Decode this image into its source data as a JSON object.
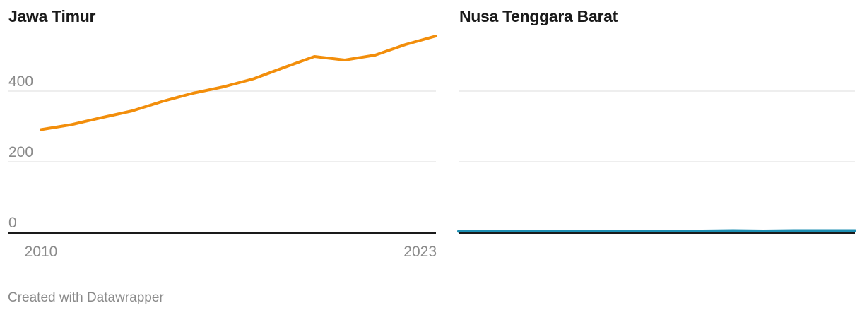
{
  "chart_data": [
    {
      "type": "line",
      "title": "Jawa Timur",
      "x": [
        2010,
        2011,
        2012,
        2013,
        2014,
        2015,
        2016,
        2017,
        2018,
        2019,
        2020,
        2021,
        2022,
        2023
      ],
      "series": [
        {
          "values": [
            291,
            305,
            325,
            344,
            371,
            394,
            412,
            435,
            467,
            498,
            488,
            502,
            532,
            556
          ]
        }
      ],
      "ylim": [
        0,
        560
      ],
      "yticks": [
        0,
        200,
        400
      ],
      "xticks": [
        2010,
        2023
      ],
      "grid": true,
      "color": "#f28e0b"
    },
    {
      "type": "line",
      "title": "Nusa Tenggara Barat",
      "x": [
        2010,
        2011,
        2012,
        2013,
        2014,
        2015,
        2016,
        2017,
        2018,
        2019,
        2020,
        2021,
        2022,
        2023
      ],
      "series": [
        {
          "values": [
            3,
            3,
            3,
            3,
            4,
            4,
            4,
            4,
            4,
            5,
            4,
            5,
            5,
            5
          ]
        }
      ],
      "ylim": [
        0,
        560
      ],
      "yticks": [
        0,
        200,
        400
      ],
      "grid": true,
      "color": "#1d8fb3"
    }
  ],
  "footer": {
    "credit": "Created with Datawrapper"
  }
}
